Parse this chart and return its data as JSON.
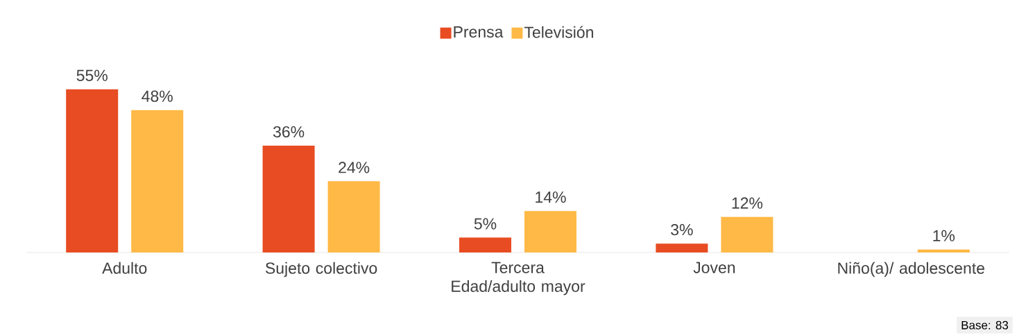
{
  "chart_data": {
    "type": "bar",
    "categories": [
      "Adulto",
      "Sujeto colectivo",
      "Tercera Edad/adulto mayor",
      "Joven",
      "Niño(a)/ adolescente"
    ],
    "series": [
      {
        "name": "Prensa",
        "color": "#e84c22",
        "values": [
          55,
          36,
          5,
          3,
          null
        ],
        "value_labels": [
          "55%",
          "36%",
          "5%",
          "3%",
          null
        ]
      },
      {
        "name": "Televisión",
        "color": "#ffb946",
        "values": [
          48,
          24,
          14,
          12,
          1
        ],
        "value_labels": [
          "48%",
          "24%",
          "14%",
          "12%",
          "1%"
        ]
      }
    ],
    "legend": "top",
    "annotations": [
      "Base: 83"
    ]
  }
}
